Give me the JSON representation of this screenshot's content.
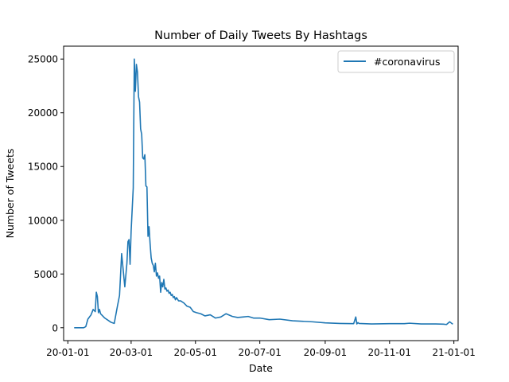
{
  "chart_data": {
    "type": "line",
    "title": "Number of Daily Tweets By Hashtags",
    "xlabel": "Date",
    "ylabel": "Number of Tweets",
    "x_ticks": [
      "20-01-01",
      "20-03-01",
      "20-05-01",
      "20-07-01",
      "20-09-01",
      "20-11-01",
      "21-01-01"
    ],
    "y_ticks": [
      0,
      5000,
      10000,
      15000,
      20000,
      25000
    ],
    "xlim": [
      "2019-12-28",
      "2021-01-05"
    ],
    "ylim": [
      -1200,
      26200
    ],
    "grid": false,
    "legend_position": "top-right",
    "series": [
      {
        "name": "#coronavirus",
        "color": "#1f77b4",
        "x": [
          "2020-01-07",
          "2020-01-12",
          "2020-01-16",
          "2020-01-18",
          "2020-01-20",
          "2020-01-23",
          "2020-01-25",
          "2020-01-27",
          "2020-01-28",
          "2020-01-29",
          "2020-01-30",
          "2020-01-31",
          "2020-02-01",
          "2020-02-02",
          "2020-02-05",
          "2020-02-08",
          "2020-02-11",
          "2020-02-14",
          "2020-02-17",
          "2020-02-19",
          "2020-02-21",
          "2020-02-24",
          "2020-02-26",
          "2020-02-27",
          "2020-02-28",
          "2020-02-29",
          "2020-03-01",
          "2020-03-02",
          "2020-03-03",
          "2020-03-04",
          "2020-03-05",
          "2020-03-06",
          "2020-03-07",
          "2020-03-08",
          "2020-03-09",
          "2020-03-10",
          "2020-03-11",
          "2020-03-12",
          "2020-03-13",
          "2020-03-14",
          "2020-03-15",
          "2020-03-16",
          "2020-03-17",
          "2020-03-18",
          "2020-03-19",
          "2020-03-20",
          "2020-03-21",
          "2020-03-22",
          "2020-03-23",
          "2020-03-24",
          "2020-03-25",
          "2020-03-26",
          "2020-03-27",
          "2020-03-28",
          "2020-03-29",
          "2020-03-30",
          "2020-03-31",
          "2020-04-01",
          "2020-04-02",
          "2020-04-03",
          "2020-04-04",
          "2020-04-05",
          "2020-04-06",
          "2020-04-07",
          "2020-04-08",
          "2020-04-09",
          "2020-04-10",
          "2020-04-11",
          "2020-04-12",
          "2020-04-13",
          "2020-04-15",
          "2020-04-17",
          "2020-04-20",
          "2020-04-23",
          "2020-04-26",
          "2020-04-29",
          "2020-05-02",
          "2020-05-06",
          "2020-05-10",
          "2020-05-15",
          "2020-05-20",
          "2020-05-25",
          "2020-05-30",
          "2020-06-05",
          "2020-06-10",
          "2020-06-15",
          "2020-06-20",
          "2020-06-25",
          "2020-07-01",
          "2020-07-10",
          "2020-07-20",
          "2020-08-01",
          "2020-08-10",
          "2020-08-20",
          "2020-09-01",
          "2020-09-15",
          "2020-09-28",
          "2020-09-30",
          "2020-10-01",
          "2020-10-02",
          "2020-10-03",
          "2020-10-15",
          "2020-11-01",
          "2020-11-15",
          "2020-11-20",
          "2020-12-01",
          "2020-12-15",
          "2020-12-22",
          "2020-12-25",
          "2020-12-28",
          "2020-12-31"
        ],
        "y": [
          0,
          0,
          0,
          100,
          800,
          1200,
          1700,
          1500,
          3300,
          2900,
          1400,
          1700,
          1300,
          1200,
          900,
          700,
          500,
          400,
          2000,
          3000,
          6900,
          3800,
          6000,
          8000,
          8200,
          5900,
          9000,
          11000,
          13000,
          25000,
          22000,
          24500,
          23800,
          21500,
          21000,
          18500,
          18000,
          15800,
          15700,
          16100,
          13200,
          13100,
          8500,
          9400,
          7800,
          6500,
          6000,
          5800,
          5200,
          6000,
          4800,
          5100,
          4600,
          4800,
          3300,
          4200,
          3800,
          4500,
          3600,
          3700,
          3400,
          3500,
          3200,
          3300,
          3000,
          3100,
          2800,
          2900,
          2600,
          2800,
          2500,
          2500,
          2300,
          2000,
          1900,
          1500,
          1400,
          1300,
          1100,
          1200,
          900,
          1000,
          1300,
          1050,
          950,
          1000,
          1050,
          900,
          900,
          750,
          800,
          650,
          600,
          550,
          450,
          400,
          380,
          1000,
          350,
          480,
          400,
          350,
          380,
          380,
          420,
          350,
          350,
          330,
          300,
          550,
          330
        ]
      }
    ]
  }
}
